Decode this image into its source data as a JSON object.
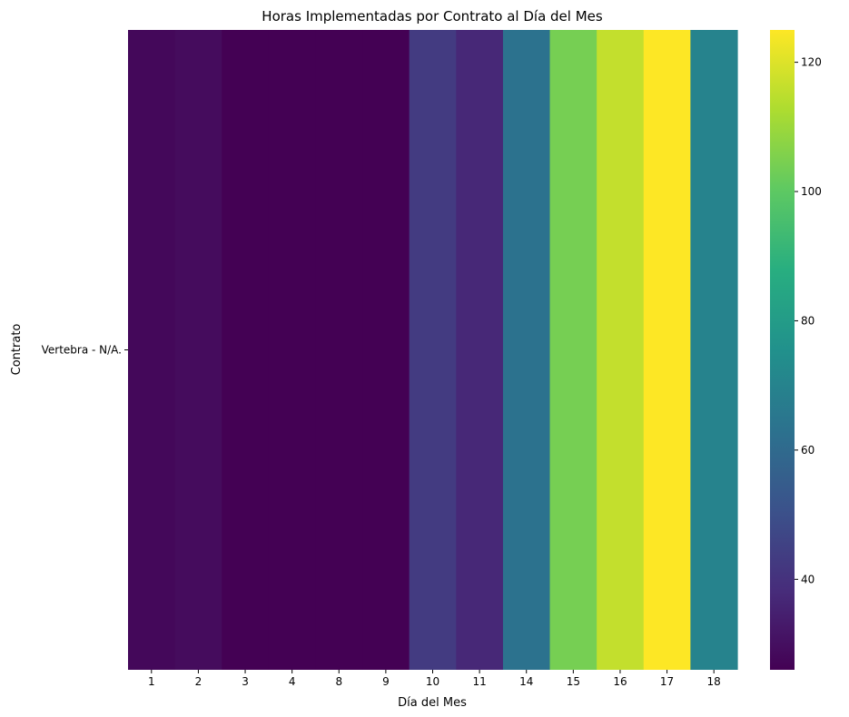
{
  "chart_data": {
    "type": "heatmap",
    "title": "Horas Implementadas por Contrato al Día del Mes",
    "xlabel": "Día del Mes",
    "ylabel": "Contrato",
    "x": [
      "1",
      "2",
      "3",
      "4",
      "8",
      "9",
      "10",
      "11",
      "14",
      "15",
      "16",
      "17",
      "18"
    ],
    "y": [
      "Vertebra - N/A."
    ],
    "values": [
      [
        28,
        29,
        26,
        26,
        26,
        26,
        43,
        37,
        63,
        104,
        116,
        125,
        70
      ]
    ],
    "colormap": "viridis",
    "colorbar": {
      "range": [
        26,
        125
      ],
      "ticks": [
        "40",
        "60",
        "80",
        "100",
        "120"
      ]
    }
  }
}
